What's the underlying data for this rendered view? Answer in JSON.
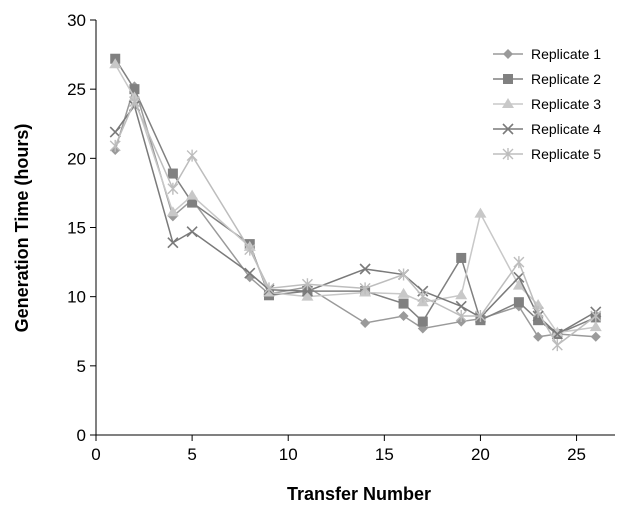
{
  "chart_data": {
    "type": "line",
    "title": "",
    "xlabel": "Transfer Number",
    "ylabel": "Generation Time (hours)",
    "xlim": [
      0,
      27
    ],
    "ylim": [
      0,
      30
    ],
    "xticks": [
      0,
      5,
      10,
      15,
      20,
      25
    ],
    "yticks": [
      0,
      5,
      10,
      15,
      20,
      25,
      30
    ],
    "grid": false,
    "legend_position": "top-right",
    "x": [
      1,
      2,
      4,
      5,
      8,
      9,
      11,
      14,
      16,
      17,
      19,
      20,
      22,
      23,
      24,
      26
    ],
    "series": [
      {
        "name": "Replicate 1",
        "marker": "diamond",
        "color": "#9a9a9a",
        "values": [
          20.6,
          25.2,
          15.8,
          17.0,
          11.4,
          10.2,
          10.7,
          8.1,
          8.6,
          7.7,
          8.2,
          8.4,
          9.3,
          7.1,
          7.3,
          7.1
        ]
      },
      {
        "name": "Replicate 2",
        "marker": "square",
        "color": "#808080",
        "values": [
          27.2,
          25.0,
          18.9,
          16.8,
          13.8,
          10.1,
          10.4,
          10.4,
          9.5,
          8.2,
          12.8,
          8.3,
          9.6,
          8.3,
          7.3,
          8.5
        ]
      },
      {
        "name": "Replicate 3",
        "marker": "triangle",
        "color": "#c8c8c8",
        "values": [
          26.8,
          24.4,
          16.1,
          17.3,
          13.6,
          10.3,
          10.0,
          10.3,
          10.2,
          9.6,
          10.1,
          16.0,
          10.8,
          9.4,
          7.4,
          7.8
        ]
      },
      {
        "name": "Replicate 4",
        "marker": "x",
        "color": "#7a7a7a",
        "values": [
          21.9,
          23.8,
          13.9,
          14.7,
          11.7,
          10.5,
          10.4,
          12.0,
          11.6,
          10.4,
          9.3,
          8.5,
          11.4,
          8.6,
          7.3,
          8.9
        ]
      },
      {
        "name": "Replicate 5",
        "marker": "star",
        "color": "#bdbdbd",
        "values": [
          20.9,
          24.1,
          17.8,
          20.2,
          13.4,
          10.6,
          10.9,
          10.6,
          11.6,
          10.0,
          8.6,
          8.6,
          12.5,
          8.9,
          6.5,
          8.6
        ]
      }
    ]
  }
}
